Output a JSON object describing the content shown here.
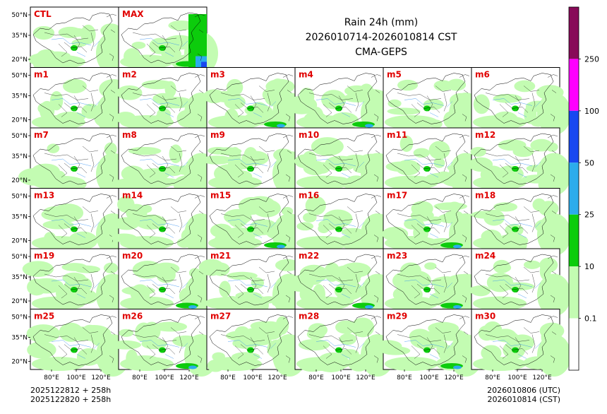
{
  "title": {
    "line1": "Rain 24h (mm)",
    "line2": "2026010714-2026010814 CST",
    "line3": "CMA-GEPS"
  },
  "panels": [
    "CTL",
    "MAX",
    "m1",
    "m2",
    "m3",
    "m4",
    "m5",
    "m6",
    "m7",
    "m8",
    "m9",
    "m10",
    "m11",
    "m12",
    "m13",
    "m14",
    "m15",
    "m16",
    "m17",
    "m18",
    "m19",
    "m20",
    "m21",
    "m22",
    "m23",
    "m24",
    "m25",
    "m26",
    "m27",
    "m28",
    "m29",
    "m30"
  ],
  "chart_data": {
    "type": "heatmap",
    "title": "Rain 24h (mm)",
    "subtitle": "2026010714-2026010814 CST",
    "model": "CMA-GEPS",
    "lat_ticks": [
      "50°N",
      "35°N",
      "20°N"
    ],
    "lon_ticks": [
      "80°E",
      "100°E",
      "120°E"
    ],
    "colorbar": {
      "ticks": [
        "0.1",
        "10",
        "25",
        "50",
        "100",
        "250"
      ],
      "colors": [
        "#ffffff",
        "#c3fcb2",
        "#0ccc0c",
        "#2cacec",
        "#1848f0",
        "#ff00ff",
        "#880a58"
      ]
    },
    "wet_panels": [
      "MAX",
      "m3",
      "m4",
      "m15",
      "m17",
      "m20",
      "m22",
      "m23",
      "m26",
      "m29"
    ]
  },
  "footer": {
    "init_utc": "2025122812 + 258h",
    "init_cst": "2025122820 + 258h",
    "valid_utc": "2026010806 (UTC)",
    "valid_cst": "2026010814 (CST)"
  }
}
